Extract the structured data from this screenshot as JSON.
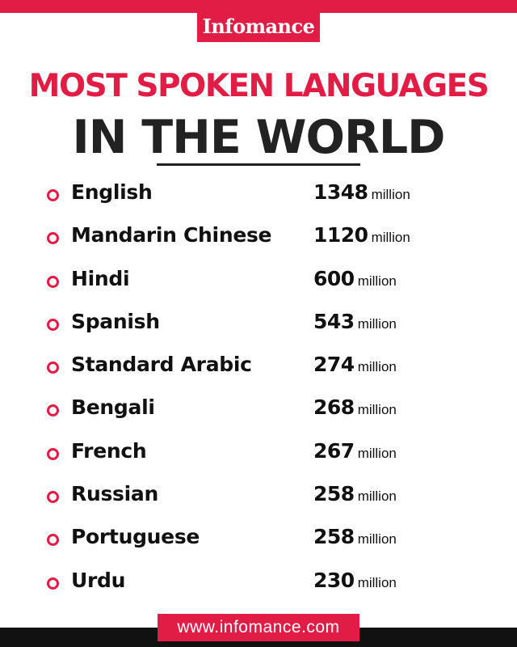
{
  "brand": "Infomance",
  "title": {
    "line1": "MOST SPOKEN LANGUAGES",
    "line2": "IN THE WORLD"
  },
  "unit": "million",
  "languages": [
    {
      "name": "English",
      "speakers": "1348"
    },
    {
      "name": "Mandarin Chinese",
      "speakers": "1120"
    },
    {
      "name": "Hindi",
      "speakers": "600"
    },
    {
      "name": "Spanish",
      "speakers": "543"
    },
    {
      "name": "Standard Arabic",
      "speakers": "274"
    },
    {
      "name": "Bengali",
      "speakers": "268"
    },
    {
      "name": "French",
      "speakers": "267"
    },
    {
      "name": "Russian",
      "speakers": "258"
    },
    {
      "name": "Portuguese",
      "speakers": "258"
    },
    {
      "name": "Urdu",
      "speakers": "230"
    }
  ],
  "website": "www.infomance.com",
  "colors": {
    "accent": "#e21d45",
    "text": "#111111",
    "footer": "#111111"
  },
  "icons": {
    "bullet": "circle-bullet-icon"
  }
}
